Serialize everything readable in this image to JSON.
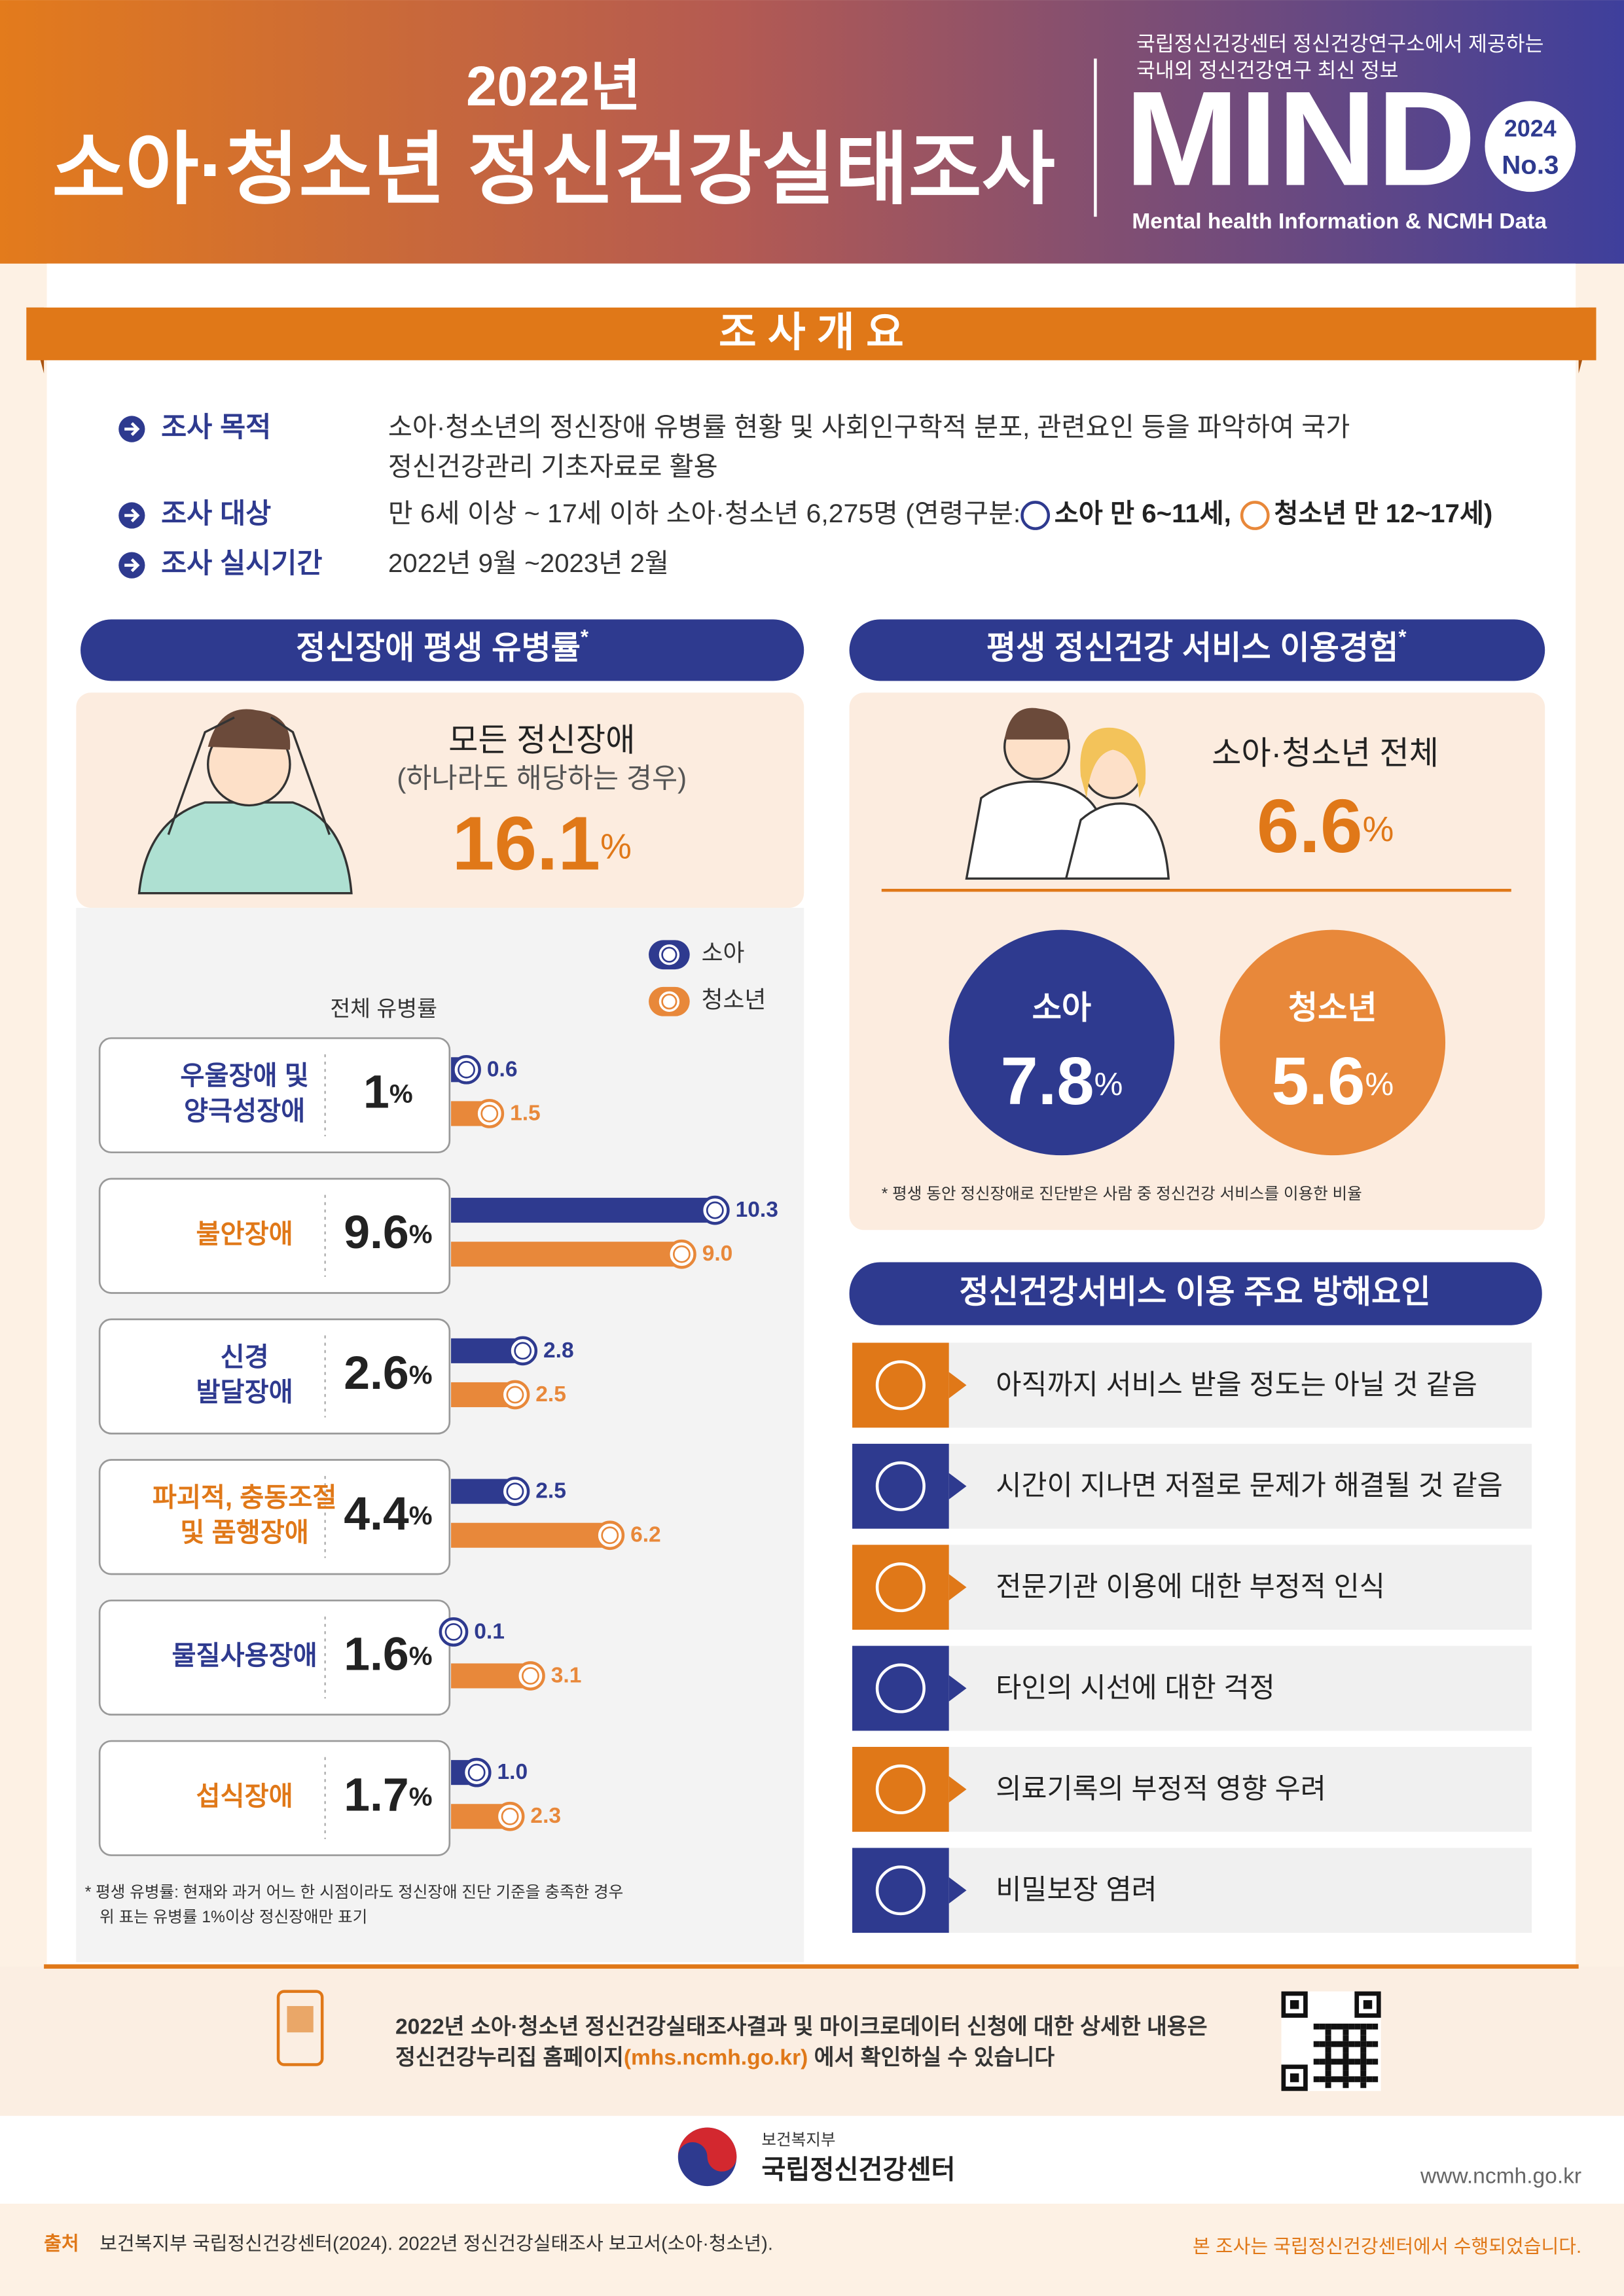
{
  "header": {
    "year_title": "2022년",
    "title": "소아·청소년 정신건강실태조사",
    "intro_lines": [
      "국립정신건강센터 정신건강연구소에서 제공하는",
      "국내외 정신건강연구 최신 정보"
    ],
    "brand": "MIND",
    "issue_year": "2024",
    "issue_no": "No.3",
    "brand_tagline": "Mental health Information & NCMH Data"
  },
  "overview": {
    "title": "조 사 개 요",
    "purpose": {
      "label": "조사 목적",
      "lines": [
        "소아·청소년의 정신장애 유병률 현황 및 사회인구학적 분포, 관련요인 등을 파악하여 국가",
        "정신건강관리 기초자료로 활용"
      ]
    },
    "target": {
      "label": "조사 대상",
      "text": "만 6세 이상 ~ 17세 이하 소아·청소년 6,275명 (연령구분:",
      "group_child": "소아 만 6~11세,",
      "group_teen": "청소년 만 12~17세)"
    },
    "period": {
      "label": "조사 실시기간",
      "text": "2022년 9월 ~2023년 2월"
    }
  },
  "prevalence": {
    "title": "정신장애 평생 유병률",
    "title_mark": "*",
    "highlight_label": "모든 정신장애",
    "highlight_sublabel": "(하나라도 해당하는 경우)",
    "highlight_value": 16.1,
    "unit": "%",
    "total_label": "전체 유병률",
    "legend": [
      {
        "name": "소아",
        "color": "#2e3a8f"
      },
      {
        "name": "청소년",
        "color": "#e8883a"
      }
    ],
    "rows": [
      {
        "name_lines": [
          "우울장애 및",
          "양극성장애"
        ],
        "total": 1,
        "values": [
          0.6,
          1.5
        ],
        "value_labels": [
          "0.6",
          "1.5"
        ]
      },
      {
        "name_lines": [
          "불안장애"
        ],
        "total": 9.6,
        "values": [
          10.3,
          9.0
        ],
        "value_labels": [
          "10.3",
          "9.0"
        ]
      },
      {
        "name_lines": [
          "신경",
          "발달장애"
        ],
        "total": 2.6,
        "values": [
          2.8,
          2.5
        ],
        "value_labels": [
          "2.8",
          "2.5"
        ]
      },
      {
        "name_lines": [
          "파괴적, 충동조절",
          "및 품행장애"
        ],
        "total": 4.4,
        "values": [
          2.5,
          6.2
        ],
        "value_labels": [
          "2.5",
          "6.2"
        ]
      },
      {
        "name_lines": [
          "물질사용장애"
        ],
        "total": 1.6,
        "values": [
          0.1,
          3.1
        ],
        "value_labels": [
          "0.1",
          "3.1"
        ]
      },
      {
        "name_lines": [
          "섭식장애"
        ],
        "total": 1.7,
        "values": [
          1.0,
          2.3
        ],
        "value_labels": [
          "1.0",
          "2.3"
        ]
      }
    ],
    "footnote_lines": [
      "* 평생 유병률: 현재와 과거 어느 한 시점이라도 정신장애 진단 기준을 충족한 경우",
      "위 표는 유병률 1%이상 정신장애만 표기"
    ]
  },
  "service": {
    "title": "평생 정신건강 서비스 이용경험",
    "title_mark": "*",
    "total_label": "소아·청소년 전체",
    "total": 6.6,
    "unit": "%",
    "groups": [
      {
        "name": "소아",
        "value": 7.8
      },
      {
        "name": "청소년",
        "value": 5.6
      }
    ],
    "footnote": "* 평생 동안 정신장애로 진단받은 사람 중 정신건강 서비스를 이용한 비율"
  },
  "barriers": {
    "title": "정신건강서비스 이용 주요 방해요인",
    "items": [
      "아직까지 서비스 받을 정도는 아닐 것 같음",
      "시간이 지나면 저절로 문제가 해결될 것 같음",
      "전문기관 이용에 대한 부정적 인식",
      "타인의 시선에 대한 걱정",
      "의료기록의 부정적 영향 우려",
      "비밀보장 염려"
    ]
  },
  "info": {
    "line1": "2022년 소아·청소년 정신건강실태조사결과 및 마이크로데이터 신청에 대한 상세한 내용은",
    "line2_pre": "정신건강누리집 홈페이지",
    "line2_link": "(mhs.ncmh.go.kr)",
    "line2_post": " 에서 확인하실 수 있습니다"
  },
  "footer": {
    "ministry": "보건복지부",
    "org": "국립정신건강센터",
    "url": "www.ncmh.go.kr",
    "source_label": "출처",
    "source": "보건복지부 국립정신건강센터(2024). 2022년 정신건강실태조사 보고서(소아·청소년).",
    "note": "본 조사는 국립정신건강센터에서 수행되었습니다."
  }
}
